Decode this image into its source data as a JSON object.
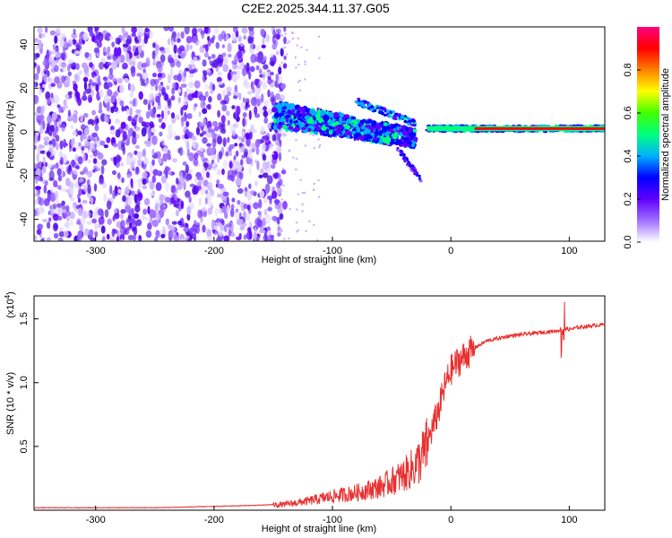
{
  "title": "C2E2.2025.344.11.37.G05",
  "chart_data": [
    {
      "type": "heatmap",
      "name": "spectrogram",
      "title": "C2E2.2025.344.11.37.G05",
      "xlabel": "Height of straight line (km)",
      "ylabel": "Frequency (Hz)",
      "xlim": [
        -352,
        130
      ],
      "ylim": [
        -50,
        48
      ],
      "xticks": [
        -300,
        -200,
        -100,
        0,
        100
      ],
      "yticks": [
        -40,
        -20,
        0,
        20,
        40
      ],
      "zlim": [
        0,
        1
      ],
      "colorbar": {
        "label": "Normalized spectral amplitude",
        "ticks": [
          "0.0",
          "0.2",
          "0.4",
          "0.6",
          "0.8"
        ],
        "tick_values": [
          0,
          0.2,
          0.4,
          0.6,
          0.8
        ],
        "colors": [
          "#ffffff",
          "#a070ff",
          "#6000ff",
          "#0000ff",
          "#00b0ff",
          "#00ff80",
          "#40ff00",
          "#ffff00",
          "#ff8000",
          "#ff0000",
          "#ff0080"
        ]
      },
      "regions": [
        {
          "desc": "broadband noise",
          "x_range": [
            -352,
            -140
          ],
          "y_range": [
            -50,
            48
          ],
          "amplitude": [
            0.0,
            0.25
          ]
        },
        {
          "desc": "transition band",
          "x_range": [
            -150,
            -30
          ],
          "y_center_start": 8,
          "y_center_end": -3,
          "amplitude": [
            0.2,
            0.5
          ]
        },
        {
          "desc": "stable carrier",
          "x_range": [
            -20,
            130
          ],
          "y_center": 1.5,
          "amplitude": [
            0.6,
            1.0
          ]
        }
      ]
    },
    {
      "type": "line",
      "name": "snr",
      "xlabel": "Height of straight line (km)",
      "ylabel": "SNR (10 * v/v)",
      "multiplier_label": "(x10",
      "multiplier_exp": "4",
      "multiplier_close": ")",
      "xlim": [
        -352,
        130
      ],
      "ylim": [
        0,
        1.68
      ],
      "xticks": [
        -300,
        -200,
        -100,
        0,
        100
      ],
      "yticks": [
        "0.5",
        "1.0",
        "1.5"
      ],
      "ytick_values": [
        0.5,
        1.0,
        1.5
      ],
      "color": "#e83030",
      "series": [
        {
          "name": "SNR",
          "x": [
            -352,
            -300,
            -250,
            -200,
            -160,
            -140,
            -120,
            -100,
            -80,
            -60,
            -50,
            -40,
            -30,
            -25,
            -20,
            -15,
            -10,
            -5,
            0,
            5,
            10,
            15,
            20,
            25,
            30,
            40,
            50,
            60,
            70,
            80,
            90,
            95,
            100,
            110,
            120,
            130
          ],
          "y": [
            0.02,
            0.02,
            0.02,
            0.03,
            0.04,
            0.05,
            0.08,
            0.12,
            0.15,
            0.2,
            0.25,
            0.3,
            0.38,
            0.45,
            0.55,
            0.68,
            0.82,
            1.0,
            1.12,
            1.18,
            1.22,
            1.26,
            1.28,
            1.3,
            1.33,
            1.35,
            1.37,
            1.38,
            1.39,
            1.4,
            1.41,
            1.43,
            1.42,
            1.44,
            1.45,
            1.46
          ]
        }
      ]
    }
  ]
}
